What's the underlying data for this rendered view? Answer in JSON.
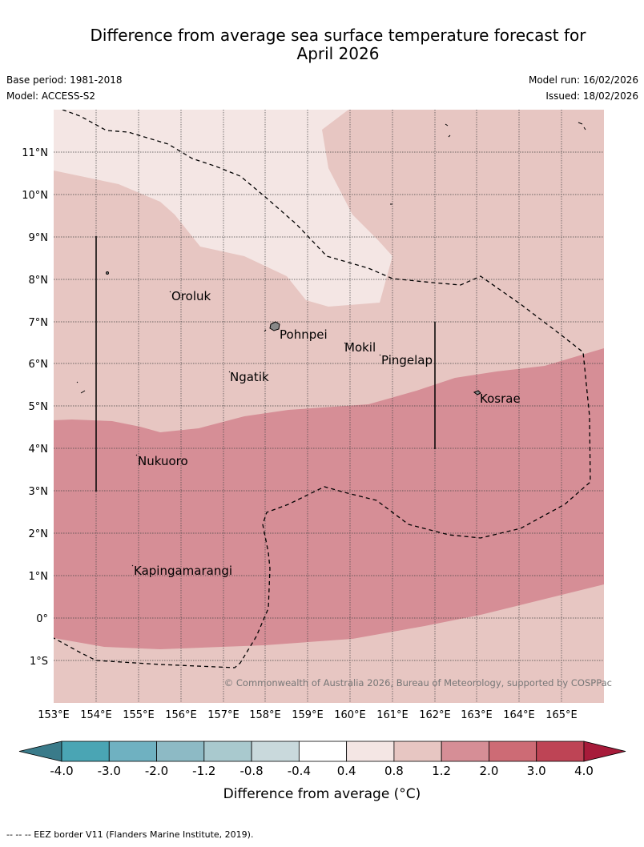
{
  "title": {
    "line1": "Difference from average sea surface temperature forecast for",
    "line2": "April 2026"
  },
  "meta": {
    "base_period": "Base period: 1981-2018",
    "model": "Model: ACCESS-S2",
    "model_run": "Model run: 16/02/2026",
    "issued": "Issued: 18/02/2026"
  },
  "map": {
    "lat_labels": [
      "11°N",
      "10°N",
      "9°N",
      "8°N",
      "7°N",
      "6°N",
      "5°N",
      "4°N",
      "3°N",
      "2°N",
      "1°N",
      "0°",
      "1°S"
    ],
    "lon_labels": [
      "153°E",
      "154°E",
      "155°E",
      "156°E",
      "157°E",
      "158°E",
      "159°E",
      "160°E",
      "161°E",
      "162°E",
      "163°E",
      "164°E",
      "165°E"
    ],
    "places": [
      "Oroluk",
      "Pohnpei",
      "Mokil",
      "Pingelap",
      "Ngatik",
      "Kosrae",
      "Nukuoro",
      "Kapingamarangi"
    ],
    "copyright": "© Commonwealth of Australia 2026, Bureau of Meteorology, supported by COSPPac",
    "colors": {
      "band_04_08": "#f4e6e4",
      "band_08_12": "#e7c6c2",
      "band_12_20": "#d68e96"
    }
  },
  "colorbar": {
    "tick_labels": [
      "-4.0",
      "-3.0",
      "-2.0",
      "-1.2",
      "-0.8",
      "-0.4",
      "0.4",
      "0.8",
      "1.2",
      "2.0",
      "3.0",
      "4.0"
    ],
    "colors": [
      "#3a7b8a",
      "#4aa5b4",
      "#6fb1c1",
      "#8dbac5",
      "#a9c9ce",
      "#c9d9dc",
      "#ffffff",
      "#f4e6e4",
      "#e7c6c2",
      "#d68e96",
      "#cd6b75",
      "#be4455",
      "#a71b3a"
    ],
    "label": "Difference from average (°C)"
  },
  "footer": "--  --  -- EEZ border V11 (Flanders Marine Institute, 2019)."
}
